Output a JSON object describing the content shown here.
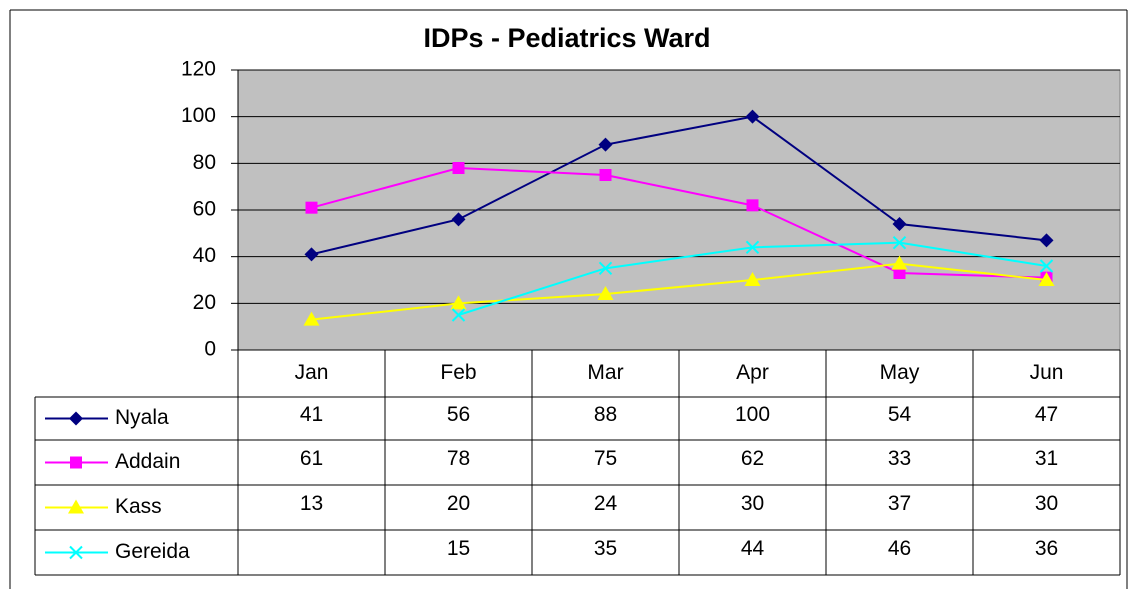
{
  "chart_data": {
    "type": "line",
    "title": "IDPs  - Pediatrics Ward",
    "categories": [
      "Jan",
      "Feb",
      "Mar",
      "Apr",
      "May",
      "Jun"
    ],
    "series": [
      {
        "name": "Nyala",
        "color": "#000080",
        "marker": "diamond",
        "values": [
          41,
          56,
          88,
          100,
          54,
          47
        ]
      },
      {
        "name": "Addain",
        "color": "#ff00ff",
        "marker": "square",
        "values": [
          61,
          78,
          75,
          62,
          33,
          31
        ]
      },
      {
        "name": "Kass",
        "color": "#ffff00",
        "marker": "triangle",
        "values": [
          13,
          20,
          24,
          30,
          37,
          30
        ]
      },
      {
        "name": "Gereida",
        "color": "#00ffff",
        "marker": "x",
        "values": [
          null,
          15,
          35,
          44,
          46,
          36
        ]
      }
    ],
    "ylim": [
      0,
      120
    ],
    "yticks": [
      0,
      20,
      40,
      60,
      80,
      100,
      120
    ],
    "grid": true,
    "plot_background": "#c0c0c0",
    "data_table": true
  }
}
